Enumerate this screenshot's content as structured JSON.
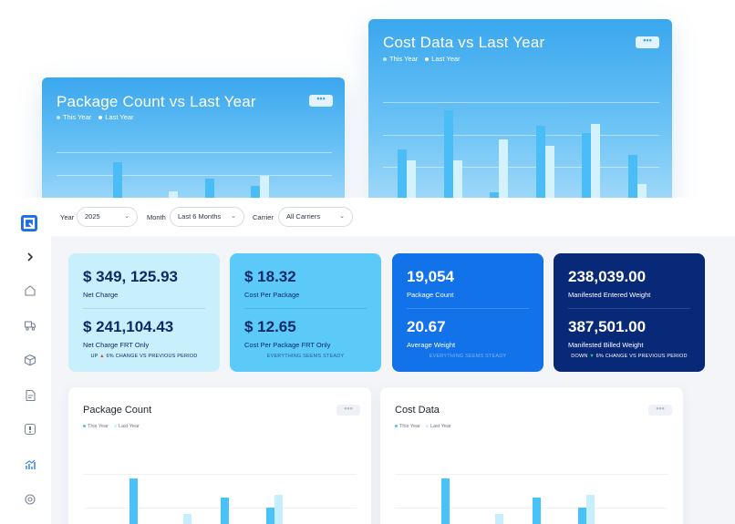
{
  "hero_package": {
    "title": "Package Count vs Last Year",
    "more_label": "•••",
    "legend": [
      {
        "label": "This Year",
        "color": "#ffffff"
      },
      {
        "label": "Last Year",
        "color": "#ffffff"
      }
    ]
  },
  "hero_cost": {
    "title": "Cost Data vs Last Year",
    "more_label": "•••",
    "legend": [
      {
        "label": "This Year",
        "color": "#ffffff"
      },
      {
        "label": "Last Year",
        "color": "#ffffff"
      }
    ]
  },
  "filters": {
    "year_label": "Year",
    "year_value": "2025",
    "month_label": "Month",
    "month_value": "Last 6 Months",
    "carrier_label": "Carrier",
    "carrier_value": "All Carriers"
  },
  "sidebar": {
    "icons": [
      "logo-icon",
      "chevron-right-icon",
      "home-icon",
      "truck-icon",
      "box-icon",
      "document-icon",
      "alert-icon",
      "chart-icon",
      "settings-icon"
    ]
  },
  "kpis": [
    {
      "value1": "$ 349, 125.93",
      "label1": "Net Charge",
      "value2": "$ 241,104.43",
      "label2": "Net Charge FRT Only",
      "footer_pre": "UP",
      "footer_arrow": "▲",
      "footer_post": "6% CHANGE VS PREVIOUS PERIOD",
      "bg": "#c8f0fc",
      "fg": "#0c2a66",
      "arrow_color": "#e23d3d"
    },
    {
      "value1": "$ 18.32",
      "label1": "Cost Per Package",
      "value2": "$ 12.65",
      "label2": "Cost Per Package FRT Only",
      "footer_pre": "",
      "footer_arrow": "",
      "footer_post": "EVERYTHING SEEMS STEADY",
      "bg": "#5ccaf8",
      "fg": "#0c2a66",
      "arrow_color": "#ffffff"
    },
    {
      "value1": "19,054",
      "label1": "Package Count",
      "value2": "20.67",
      "label2": "Average Weight",
      "footer_pre": "",
      "footer_arrow": "",
      "footer_post": "EVERYTHING SEEMS STEADY",
      "bg": "#1272ea",
      "fg": "#ffffff",
      "arrow_color": "#ffffff"
    },
    {
      "value1": "238,039.00",
      "label1": "Manifested Entered Weight",
      "value2": "387,501.00",
      "label2": "Manifested Billed Weight",
      "footer_pre": "DOWN",
      "footer_arrow": "▼",
      "footer_post": "6% CHANGE VS PREVIOUS PERIOD",
      "bg": "#082878",
      "fg": "#ffffff",
      "arrow_color": "#2ad36a"
    }
  ],
  "panels": [
    {
      "title": "Package Count",
      "more_label": "•••",
      "legend": [
        {
          "label": "This Year",
          "color": "#48c2f7"
        },
        {
          "label": "Last Year",
          "color": "#c7eefc"
        }
      ]
    },
    {
      "title": "Cost Data",
      "more_label": "•••",
      "legend": [
        {
          "label": "This Year",
          "color": "#48c2f7"
        },
        {
          "label": "Last Year",
          "color": "#c7eefc"
        }
      ]
    }
  ],
  "colors": {
    "this_year": "#48c2f7",
    "last_year": "#c7eefc",
    "hero_this_year": "#4bbdf6",
    "hero_last_year": "#d4f2fd"
  },
  "chart_data": [
    {
      "type": "bar",
      "title": "Package Count vs Last Year",
      "series": [
        {
          "name": "This Year",
          "values": [
            0,
            52,
            0,
            28,
            18,
            0
          ]
        },
        {
          "name": "Last Year",
          "values": [
            0,
            0,
            10,
            0,
            33,
            0
          ]
        }
      ],
      "ylim": [
        0,
        100
      ]
    },
    {
      "type": "bar",
      "title": "Cost Data vs Last Year",
      "series": [
        {
          "name": "This Year",
          "values": [
            38,
            69,
            5,
            57,
            51,
            34
          ]
        },
        {
          "name": "Last Year",
          "values": [
            30,
            30,
            46,
            41,
            58,
            11
          ]
        }
      ],
      "ylim": [
        0,
        100
      ]
    },
    {
      "type": "bar",
      "title": "Package Count",
      "series": [
        {
          "name": "This Year",
          "values": [
            15,
            62,
            0,
            43,
            34,
            7
          ]
        },
        {
          "name": "Last Year",
          "values": [
            0,
            0,
            27,
            18,
            46,
            0
          ]
        }
      ],
      "ylim": [
        0,
        100
      ]
    },
    {
      "type": "bar",
      "title": "Cost Data",
      "series": [
        {
          "name": "This Year",
          "values": [
            15,
            62,
            0,
            43,
            34,
            7
          ]
        },
        {
          "name": "Last Year",
          "values": [
            0,
            0,
            27,
            18,
            46,
            0
          ]
        }
      ],
      "ylim": [
        0,
        100
      ]
    }
  ]
}
